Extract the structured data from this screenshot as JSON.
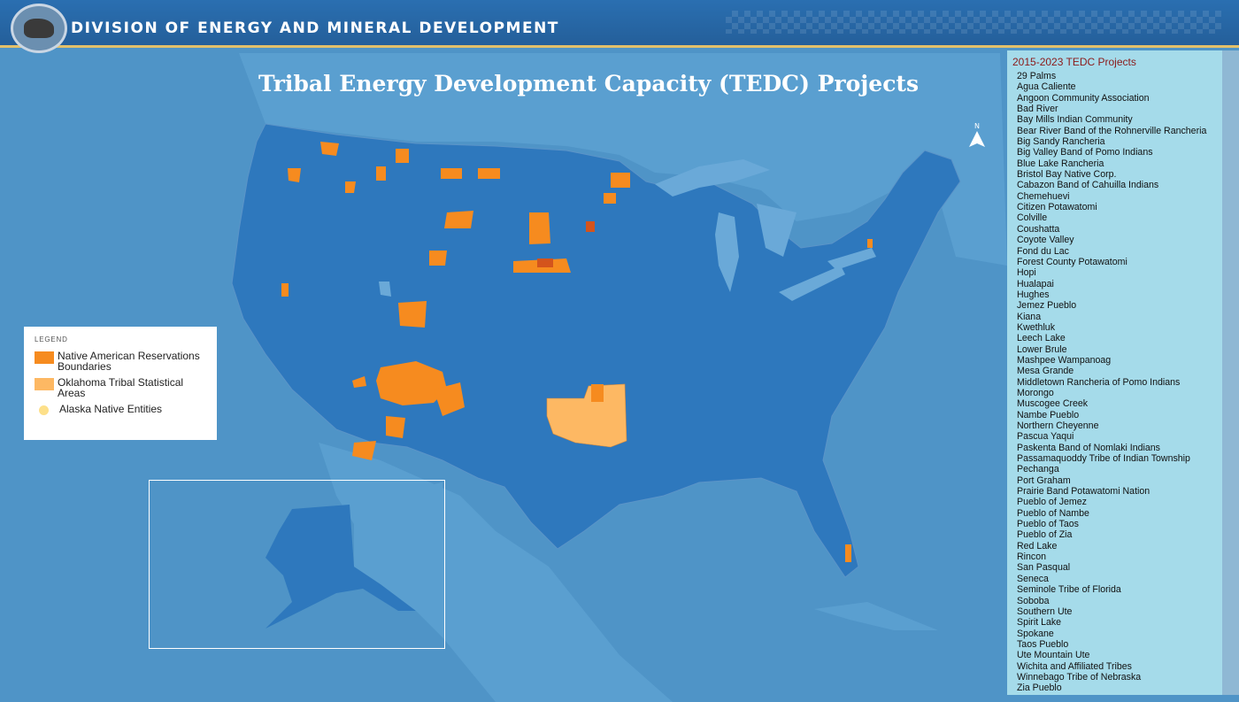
{
  "header": {
    "title": "DIVISION OF ENERGY AND MINERAL DEVELOPMENT"
  },
  "map": {
    "title": "Tribal Energy Development Capacity (TEDC) Projects",
    "north_label": "N"
  },
  "legend": {
    "heading": "LEGEND",
    "items": [
      {
        "label": "Native American Reservations Boundaries",
        "color": "#f68b1f"
      },
      {
        "label": "Oklahoma Tribal Statistical Areas",
        "color": "#fdb863"
      },
      {
        "label": "Alaska Native Entities",
        "color": "#fde08a"
      }
    ]
  },
  "colors": {
    "ocean": "#4f94c7",
    "land": "#2e78bd",
    "header": "#2a6fb1",
    "panel": "#a5dbea",
    "reservation": "#f68b1f",
    "reservation_dark": "#d4541c",
    "oklahoma": "#fdb863"
  },
  "projects_panel": {
    "title": "2015-2023 TEDC Projects",
    "items": [
      "29 Palms",
      "Agua Caliente",
      "Angoon Community Association",
      "Bad River",
      "Bay Mills Indian Community",
      "Bear River Band of the Rohnerville Rancheria",
      "Big Sandy Rancheria",
      "Big Valley Band of Pomo Indians",
      "Blue Lake Rancheria",
      "Bristol Bay Native Corp.",
      "Cabazon Band of Cahuilla Indians",
      "Chemehuevi",
      "Citizen Potawatomi",
      "Colville",
      "Coushatta",
      "Coyote Valley",
      "Fond du Lac",
      "Forest County Potawatomi",
      "Hopi",
      "Hualapai",
      "Hughes",
      "Jemez Pueblo",
      "Kiana",
      "Kwethluk",
      "Leech Lake",
      "Lower Brule",
      "Mashpee Wampanoag",
      "Mesa Grande",
      "Middletown Rancheria of Pomo Indians",
      "Morongo",
      "Muscogee Creek",
      "Nambe Pueblo",
      "Northern Cheyenne",
      "Pascua Yaqui",
      "Paskenta Band of Nomlaki Indians",
      "Passamaquoddy Tribe of Indian Township",
      "Pechanga",
      "Port Graham",
      "Prairie Band Potawatomi Nation",
      "Pueblo of Jemez",
      "Pueblo of Nambe",
      "Pueblo of Taos",
      "Pueblo of Zia",
      "Red Lake",
      "Rincon",
      "San Pasqual",
      "Seneca",
      "Seminole Tribe of Florida",
      "Soboba",
      "Southern Ute",
      "Spirit Lake",
      "Spokane",
      "Taos Pueblo",
      "Ute Mountain Ute",
      "Wichita and Affiliated Tribes",
      "Winnebago Tribe of Nebraska",
      "Zia Pueblo"
    ]
  }
}
